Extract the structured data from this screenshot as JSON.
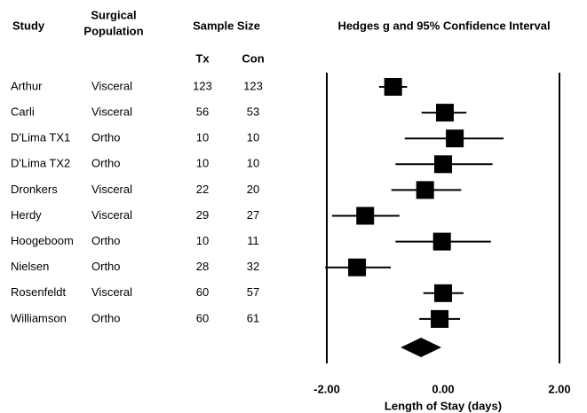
{
  "chart_data": {
    "type": "forest",
    "title": "Hedges g and 95% Confidence Interval",
    "study_header": "Study",
    "population_header": [
      "Surgical",
      "Population"
    ],
    "sample_header": "Sample Size",
    "tx_header": "Tx",
    "con_header": "Con",
    "categories": [
      "Arthur",
      "Carli",
      "D'Lima TX1",
      "D'Lima TX2",
      "Dronkers",
      "Herdy",
      "Hoogeboom",
      "Nielsen",
      "Rosenfeldt",
      "Williamson"
    ],
    "populations": [
      "Visceral",
      "Visceral",
      "Ortho",
      "Ortho",
      "Visceral",
      "Visceral",
      "Ortho",
      "Ortho",
      "Visceral",
      "Ortho"
    ],
    "tx": [
      123,
      56,
      10,
      10,
      22,
      29,
      10,
      28,
      60,
      60
    ],
    "con": [
      123,
      53,
      10,
      10,
      20,
      27,
      11,
      32,
      57,
      61
    ],
    "values": [
      -0.86,
      0.03,
      0.2,
      0.0,
      -0.31,
      -1.34,
      -0.02,
      -1.48,
      0.0,
      -0.06
    ],
    "ci_low": [
      -1.1,
      -0.37,
      -0.66,
      -0.82,
      -0.89,
      -1.91,
      -0.82,
      -2.03,
      -0.34,
      -0.41
    ],
    "ci_high": [
      -0.62,
      0.4,
      1.04,
      0.85,
      0.31,
      -0.75,
      0.82,
      -0.9,
      0.35,
      0.29
    ],
    "summary": {
      "value": -0.38,
      "low": -0.73,
      "high": -0.03
    },
    "xlabel": "Length of Stay (days)",
    "xlim": [
      -2,
      2
    ],
    "xticks": [
      {
        "value": -2,
        "label": "-2.00"
      },
      {
        "value": 0,
        "label": "0.00"
      },
      {
        "value": 2,
        "label": "2.00"
      }
    ],
    "color": "#000000"
  }
}
